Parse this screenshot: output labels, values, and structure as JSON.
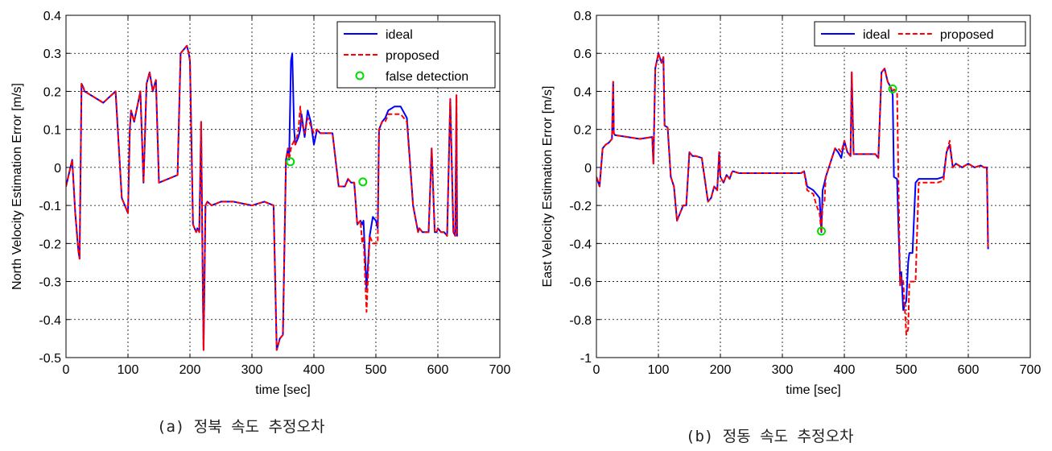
{
  "charts": [
    {
      "type": "line",
      "xlabel": "time [sec]",
      "ylabel": "North Velocity Estimation Error [m/s]",
      "xlim": [
        0,
        700
      ],
      "ylim": [
        -0.5,
        0.4
      ],
      "xticks": [
        0,
        100,
        200,
        300,
        400,
        500,
        600,
        700
      ],
      "yticks": [
        -0.5,
        -0.4,
        -0.3,
        -0.2,
        -0.1,
        0,
        0.1,
        0.2,
        0.3,
        0.4
      ],
      "ytick_labels": [
        "-0.5",
        "-0.4",
        "-0.3",
        "-0.2",
        "-0.1",
        "0",
        "0.1",
        "0.2",
        "0.3",
        "0.4"
      ],
      "grid": true,
      "legend_position": "top-right",
      "series": [
        {
          "name": "ideal",
          "color": "#0000ff",
          "style": "solid",
          "x": [
            0,
            10,
            15,
            20,
            22,
            25,
            28,
            30,
            60,
            80,
            90,
            95,
            100,
            103,
            105,
            110,
            120,
            125,
            130,
            135,
            140,
            145,
            150,
            180,
            185,
            190,
            195,
            198,
            200,
            205,
            210,
            212,
            215,
            218,
            220,
            222,
            225,
            228,
            235,
            250,
            270,
            300,
            320,
            335,
            340,
            345,
            350,
            355,
            358,
            360,
            363,
            365,
            368,
            370,
            375,
            378,
            380,
            385,
            390,
            395,
            400,
            405,
            410,
            430,
            440,
            450,
            455,
            460,
            465,
            470,
            475,
            478,
            480,
            485,
            490,
            495,
            500,
            503,
            505,
            510,
            515,
            520,
            530,
            540,
            550,
            560,
            568,
            570,
            575,
            580,
            585,
            590,
            595,
            598,
            600,
            605,
            610,
            615,
            620,
            625,
            628,
            630,
            631,
            632
          ],
          "y": [
            -0.05,
            0.02,
            -0.12,
            -0.22,
            -0.24,
            0.22,
            0.21,
            0.2,
            0.17,
            0.2,
            -0.08,
            -0.1,
            -0.12,
            0.1,
            0.15,
            0.12,
            0.2,
            -0.04,
            0.22,
            0.25,
            0.2,
            0.23,
            -0.04,
            -0.02,
            0.3,
            0.31,
            0.32,
            0.3,
            0.28,
            -0.15,
            -0.17,
            -0.16,
            -0.17,
            0.12,
            -0.2,
            -0.48,
            -0.1,
            -0.09,
            -0.1,
            -0.09,
            -0.09,
            -0.1,
            -0.09,
            -0.1,
            -0.48,
            -0.45,
            -0.44,
            0.02,
            0.05,
            0.02,
            0.28,
            0.3,
            0.1,
            0.06,
            0.08,
            0.1,
            0.14,
            0.08,
            0.15,
            0.12,
            0.06,
            0.1,
            0.09,
            0.09,
            -0.05,
            -0.05,
            -0.03,
            -0.04,
            -0.04,
            -0.15,
            -0.14,
            -0.15,
            -0.14,
            -0.32,
            -0.18,
            -0.13,
            -0.14,
            -0.16,
            0.1,
            0.12,
            0.13,
            0.15,
            0.16,
            0.16,
            0.13,
            -0.1,
            -0.17,
            -0.16,
            -0.17,
            -0.17,
            -0.17,
            0.05,
            -0.17,
            -0.17,
            -0.16,
            -0.17,
            -0.17,
            -0.18,
            0.18,
            -0.17,
            -0.18,
            0.19,
            -0.18,
            -0.18
          ]
        },
        {
          "name": "proposed",
          "color": "#ff0000",
          "style": "dashed",
          "x": [
            0,
            10,
            15,
            20,
            22,
            25,
            28,
            30,
            60,
            80,
            90,
            95,
            100,
            103,
            105,
            110,
            120,
            125,
            130,
            135,
            140,
            145,
            150,
            180,
            185,
            190,
            195,
            198,
            200,
            205,
            210,
            212,
            215,
            218,
            220,
            222,
            225,
            228,
            235,
            250,
            270,
            300,
            320,
            335,
            340,
            345,
            350,
            355,
            358,
            360,
            363,
            365,
            368,
            370,
            375,
            378,
            380,
            385,
            390,
            395,
            400,
            405,
            410,
            430,
            440,
            450,
            455,
            460,
            465,
            470,
            475,
            478,
            480,
            485,
            490,
            495,
            500,
            503,
            505,
            510,
            515,
            520,
            530,
            540,
            550,
            560,
            568,
            570,
            575,
            580,
            585,
            590,
            595,
            598,
            600,
            605,
            610,
            615,
            620,
            625,
            628,
            630,
            631,
            632
          ],
          "y": [
            -0.05,
            0.02,
            -0.12,
            -0.22,
            -0.24,
            0.22,
            0.21,
            0.2,
            0.17,
            0.2,
            -0.08,
            -0.1,
            -0.12,
            0.1,
            0.15,
            0.12,
            0.2,
            -0.04,
            0.22,
            0.25,
            0.2,
            0.23,
            -0.04,
            -0.02,
            0.3,
            0.31,
            0.32,
            0.3,
            0.28,
            -0.15,
            -0.17,
            -0.16,
            -0.17,
            0.12,
            -0.2,
            -0.48,
            -0.1,
            -0.09,
            -0.1,
            -0.09,
            -0.09,
            -0.1,
            -0.09,
            -0.1,
            -0.48,
            -0.45,
            -0.44,
            0.02,
            0.05,
            0.02,
            0.05,
            0.06,
            0.07,
            0.06,
            0.1,
            0.16,
            0.12,
            0.09,
            0.13,
            0.11,
            0.09,
            0.1,
            0.09,
            0.09,
            -0.05,
            -0.05,
            -0.03,
            -0.04,
            -0.04,
            -0.15,
            -0.14,
            -0.2,
            -0.18,
            -0.38,
            -0.18,
            -0.2,
            -0.2,
            -0.2,
            0.1,
            0.12,
            0.12,
            0.14,
            0.14,
            0.14,
            0.12,
            -0.1,
            -0.17,
            -0.16,
            -0.17,
            -0.17,
            -0.17,
            0.05,
            -0.17,
            -0.17,
            -0.16,
            -0.17,
            -0.17,
            -0.18,
            0.18,
            -0.17,
            -0.18,
            0.19,
            -0.18,
            -0.18
          ]
        },
        {
          "name": "false detection",
          "color": "#00dd00",
          "style": "marker",
          "x": [
            362,
            479
          ],
          "y": [
            0.015,
            -0.038
          ]
        }
      ]
    },
    {
      "type": "line",
      "xlabel": "time [sec]",
      "ylabel": "East Velocity Estimation Error [m/s]",
      "xlim": [
        0,
        700
      ],
      "ylim": [
        -1,
        0.8
      ],
      "xticks": [
        0,
        100,
        200,
        300,
        400,
        500,
        600,
        700
      ],
      "yticks": [
        -1,
        -0.8,
        -0.6,
        -0.4,
        -0.2,
        0,
        0.2,
        0.4,
        0.6,
        0.8
      ],
      "ytick_labels": [
        "-1",
        "-0.8",
        "-0.6",
        "-0.4",
        "-0.2",
        "0",
        "0.2",
        "0.4",
        "0.6",
        "0.8"
      ],
      "grid": true,
      "legend_position": "top-right",
      "series": [
        {
          "name": "ideal",
          "color": "#0000ff",
          "style": "solid",
          "x": [
            0,
            5,
            10,
            15,
            20,
            25,
            27,
            28,
            30,
            50,
            70,
            90,
            92,
            95,
            100,
            105,
            108,
            110,
            115,
            120,
            125,
            130,
            140,
            145,
            150,
            155,
            160,
            170,
            180,
            185,
            190,
            195,
            198,
            200,
            205,
            210,
            215,
            218,
            220,
            230,
            250,
            280,
            300,
            320,
            330,
            335,
            340,
            350,
            355,
            360,
            363,
            365,
            368,
            370,
            375,
            380,
            385,
            390,
            395,
            400,
            405,
            410,
            412,
            415,
            420,
            450,
            455,
            460,
            465,
            470,
            475,
            478,
            480,
            485,
            490,
            492,
            495,
            500,
            503,
            505,
            510,
            515,
            520,
            530,
            550,
            560,
            565,
            570,
            575,
            580,
            590,
            600,
            610,
            620,
            625,
            628,
            630,
            632
          ],
          "y": [
            -0.05,
            -0.1,
            0.1,
            0.12,
            0.13,
            0.15,
            0.45,
            0.18,
            0.17,
            0.16,
            0.15,
            0.16,
            0.02,
            0.52,
            0.6,
            0.55,
            0.58,
            0.22,
            0.21,
            -0.05,
            -0.1,
            -0.28,
            -0.2,
            -0.2,
            0.08,
            0.06,
            0.06,
            0.05,
            -0.18,
            -0.16,
            -0.1,
            -0.12,
            0.08,
            -0.05,
            -0.08,
            -0.04,
            -0.06,
            -0.03,
            -0.02,
            -0.03,
            -0.03,
            -0.03,
            -0.03,
            -0.03,
            -0.03,
            -0.02,
            -0.1,
            -0.12,
            -0.14,
            -0.16,
            -0.34,
            -0.12,
            -0.08,
            -0.05,
            0.0,
            0.05,
            0.1,
            0.08,
            0.05,
            0.14,
            0.08,
            0.06,
            0.5,
            0.07,
            0.07,
            0.07,
            0.05,
            0.5,
            0.52,
            0.45,
            0.42,
            0.38,
            -0.05,
            -0.06,
            -0.6,
            -0.55,
            -0.75,
            -0.7,
            -0.5,
            -0.45,
            -0.45,
            -0.08,
            -0.06,
            -0.06,
            -0.06,
            -0.05,
            0.08,
            0.12,
            0.0,
            0.02,
            0.0,
            0.02,
            0.0,
            0.01,
            0.0,
            0.0,
            0.0,
            -0.43
          ]
        },
        {
          "name": "proposed",
          "color": "#ff0000",
          "style": "dashed",
          "x": [
            0,
            5,
            10,
            15,
            20,
            25,
            27,
            28,
            30,
            50,
            70,
            90,
            92,
            95,
            100,
            105,
            108,
            110,
            115,
            120,
            125,
            130,
            140,
            145,
            150,
            155,
            160,
            170,
            180,
            185,
            190,
            195,
            198,
            200,
            205,
            210,
            215,
            218,
            220,
            230,
            250,
            280,
            300,
            320,
            330,
            335,
            340,
            350,
            355,
            360,
            363,
            365,
            368,
            370,
            375,
            380,
            385,
            390,
            395,
            400,
            405,
            410,
            412,
            415,
            420,
            450,
            455,
            460,
            465,
            470,
            475,
            478,
            480,
            485,
            490,
            492,
            495,
            500,
            503,
            505,
            510,
            515,
            520,
            530,
            550,
            560,
            565,
            570,
            575,
            580,
            590,
            600,
            610,
            620,
            625,
            628,
            630,
            632
          ],
          "y": [
            -0.05,
            -0.1,
            0.1,
            0.12,
            0.13,
            0.15,
            0.45,
            0.18,
            0.17,
            0.16,
            0.15,
            0.16,
            0.02,
            0.52,
            0.6,
            0.55,
            0.58,
            0.22,
            0.21,
            -0.05,
            -0.1,
            -0.28,
            -0.2,
            -0.2,
            0.08,
            0.06,
            0.06,
            0.05,
            -0.18,
            -0.16,
            -0.1,
            -0.12,
            0.08,
            -0.05,
            -0.08,
            -0.04,
            -0.06,
            -0.03,
            -0.02,
            -0.03,
            -0.03,
            -0.03,
            -0.03,
            -0.03,
            -0.03,
            -0.02,
            -0.12,
            -0.14,
            -0.2,
            -0.24,
            -0.34,
            -0.2,
            -0.18,
            -0.05,
            0.0,
            0.05,
            0.1,
            0.1,
            0.08,
            0.14,
            0.08,
            0.06,
            0.5,
            0.07,
            0.07,
            0.07,
            0.05,
            0.5,
            0.52,
            0.45,
            0.42,
            0.4,
            0.41,
            0.4,
            -0.62,
            -0.58,
            -0.6,
            -0.88,
            -0.85,
            -0.6,
            -0.6,
            -0.6,
            -0.08,
            -0.08,
            -0.08,
            -0.07,
            0.08,
            0.14,
            0.0,
            0.02,
            0.0,
            0.02,
            0.0,
            0.01,
            0.0,
            0.0,
            0.0,
            -0.43
          ]
        },
        {
          "name": "",
          "color": "#00dd00",
          "style": "marker",
          "x": [
            363,
            478
          ],
          "y": [
            -0.335,
            0.413
          ]
        }
      ]
    }
  ],
  "captions": {
    "left": "(a) 정북 속도 추정오차",
    "right": "(b) 정동 속도 추정오차"
  }
}
